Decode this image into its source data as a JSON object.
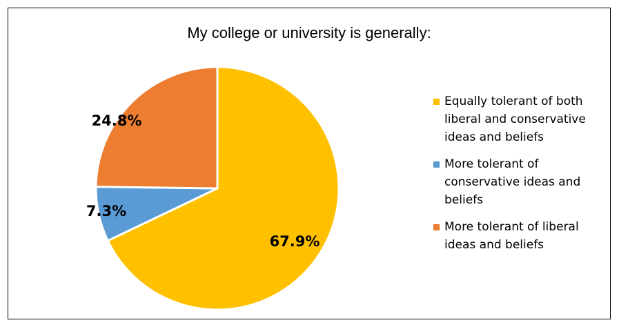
{
  "chart_data": {
    "type": "pie",
    "title": "My college or university is generally:",
    "categories": [
      "Equally tolerant of both liberal and conservative ideas and beliefs",
      "More tolerant of conservative ideas and beliefs",
      "More tolerant of liberal ideas and beliefs"
    ],
    "values": [
      67.9,
      7.3,
      24.8
    ],
    "value_labels": [
      "67.9%",
      "7.3%",
      "24.8%"
    ],
    "colors": [
      "#FFC000",
      "#5B9BD5",
      "#ED7D31"
    ],
    "legend_position": "right"
  }
}
